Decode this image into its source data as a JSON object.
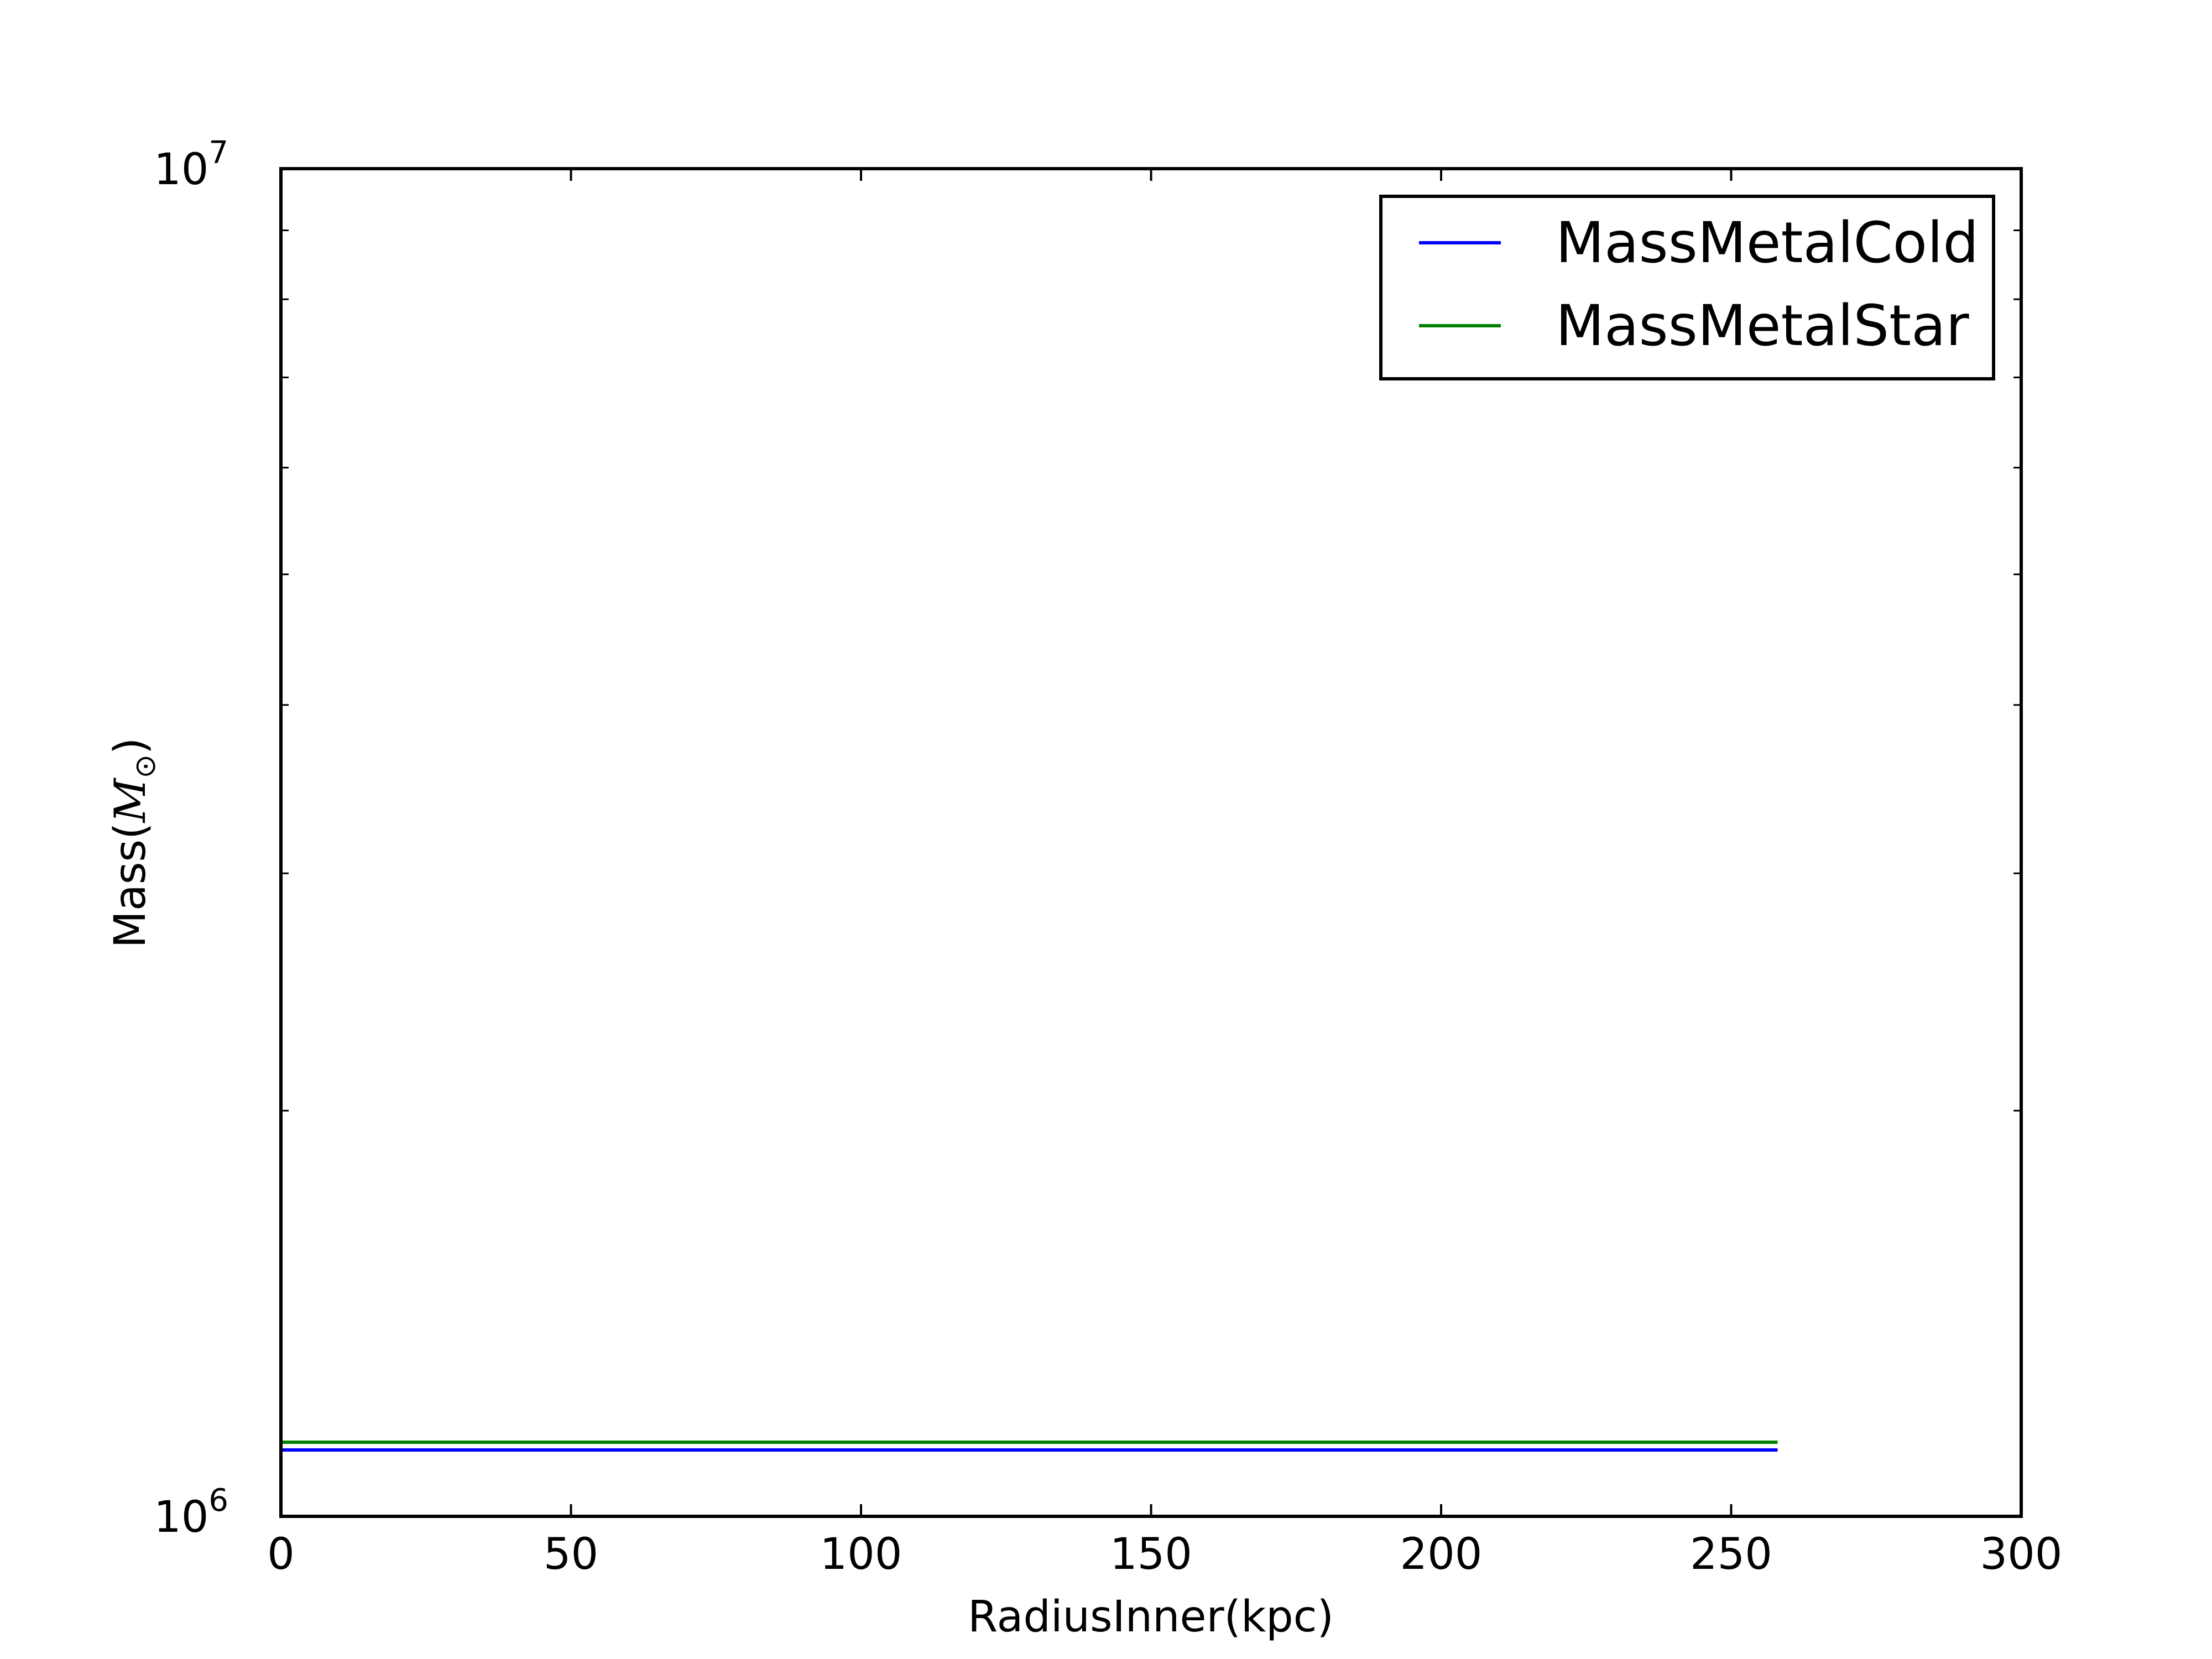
{
  "chart_data": {
    "type": "line",
    "xlabel": "RadiusInner(kpc)",
    "ylabel_text": "Mass(",
    "ylabel_math": "M",
    "ylabel_sub": "⊙",
    "ylabel_close": ")",
    "x_ticks": [
      "0",
      "50",
      "100",
      "150",
      "200",
      "250",
      "300"
    ],
    "y_ticks": [
      {
        "base": "10",
        "exp": "6"
      },
      {
        "base": "10",
        "exp": "7"
      }
    ],
    "xlim": [
      0,
      300
    ],
    "ylim": [
      1000000,
      10000000
    ],
    "y_scale": "log",
    "grid": false,
    "legend_position": "top-right",
    "series": [
      {
        "name": "MassMetalCold",
        "color": "#0000ff",
        "x": [
          0,
          258
        ],
        "values": [
          1120000,
          1120000
        ]
      },
      {
        "name": "MassMetalStar",
        "color": "#008000",
        "x": [
          0,
          258
        ],
        "values": [
          1135000,
          1135000
        ]
      }
    ]
  }
}
